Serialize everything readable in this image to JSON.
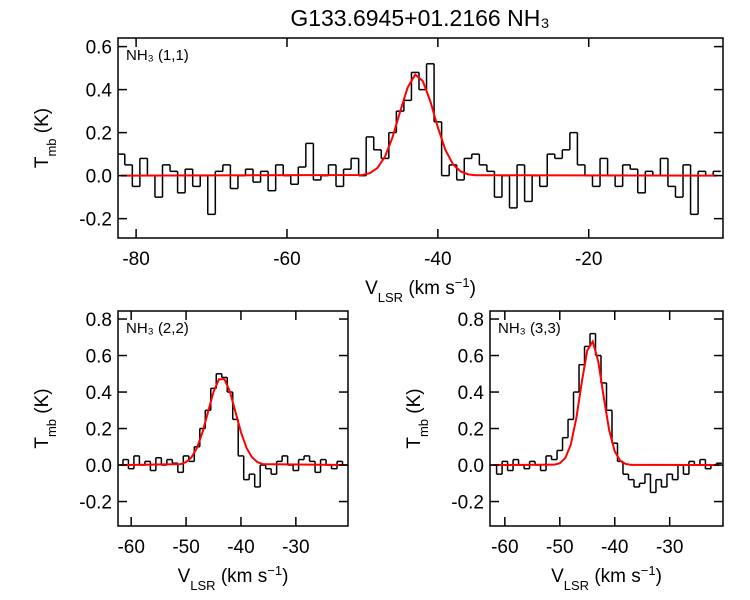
{
  "chart_data": [
    {
      "type": "line",
      "title": "G133.6945+01.2166 NH₃",
      "annotation": "NH₃ (1,1)",
      "ylabel": {
        "main": "T",
        "sub": "mb",
        "unit": " (K)"
      },
      "xlabel": {
        "main": "V",
        "sub": "LSR",
        "unit": " (km s",
        "sup": "−1",
        "close": ")"
      },
      "xlim": [
        -82.4,
        -2.2
      ],
      "ylim": [
        -0.29,
        0.64
      ],
      "xticks": [
        -80,
        -60,
        -40,
        -20
      ],
      "yticks": [
        -0.2,
        {
          "value": 0,
          "label": "0.0"
        },
        0.2,
        0.4,
        0.6
      ],
      "series": [
        {
          "color": "#000000",
          "step": true,
          "x": [
            -82,
            -81,
            -80,
            -79,
            -78,
            -77,
            -76,
            -75,
            -74,
            -73,
            -72,
            -71,
            -70,
            -69,
            -68,
            -67,
            -66,
            -65,
            -64,
            -63,
            -62,
            -61,
            -60,
            -59,
            -58,
            -57,
            -56,
            -55,
            -54,
            -53,
            -52,
            -51,
            -50,
            -49,
            -48,
            -47,
            -46,
            -45,
            -44,
            -43,
            -42,
            -41,
            -40,
            -39,
            -38,
            -37,
            -36,
            -35,
            -34,
            -33,
            -32,
            -31,
            -30,
            -29,
            -28,
            -27,
            -26,
            -25,
            -24,
            -23,
            -22,
            -21,
            -20,
            -19,
            -18,
            -17,
            -16,
            -15,
            -14,
            -13,
            -12,
            -11,
            -10,
            -9,
            -8,
            -7,
            -6,
            -5,
            -4,
            -3
          ],
          "values": [
            0.1,
            0.05,
            -0.05,
            0.08,
            0.0,
            -0.1,
            0.05,
            0.02,
            -0.08,
            0.03,
            -0.05,
            0.0,
            -0.18,
            0.02,
            0.05,
            -0.06,
            0.0,
            0.03,
            -0.03,
            0.02,
            -0.07,
            0.05,
            0.0,
            -0.04,
            0.04,
            0.15,
            -0.02,
            0.0,
            0.05,
            -0.05,
            0.03,
            0.08,
            0.0,
            0.18,
            0.12,
            0.08,
            0.2,
            0.3,
            0.35,
            0.48,
            0.4,
            0.52,
            0.25,
            0.0,
            0.05,
            -0.02,
            0.08,
            0.1,
            0.05,
            0.02,
            -0.1,
            0.0,
            -0.15,
            0.05,
            -0.12,
            0.0,
            -0.05,
            0.1,
            0.08,
            0.12,
            0.2,
            0.05,
            0.0,
            -0.05,
            0.08,
            0.0,
            -0.05,
            0.05,
            0.03,
            -0.08,
            0.02,
            0.0,
            0.08,
            -0.05,
            -0.1,
            0.05,
            -0.18,
            0.02,
            0.0,
            0.02
          ]
        },
        {
          "color": "#ff0000",
          "step": false,
          "x": [
            -82,
            -50,
            -49,
            -48,
            -47,
            -46,
            -45,
            -44,
            -43,
            -42,
            -41,
            -40,
            -39,
            -38,
            -37,
            -36,
            -35,
            -3
          ],
          "values": [
            0,
            0.003,
            0.012,
            0.036,
            0.089,
            0.179,
            0.298,
            0.41,
            0.47,
            0.44,
            0.346,
            0.224,
            0.12,
            0.053,
            0.02,
            0.006,
            0.002,
            0
          ]
        }
      ]
    },
    {
      "type": "line",
      "annotation": "NH₃ (2,2)",
      "ylabel": {
        "main": "T",
        "sub": "mb",
        "unit": " (K)"
      },
      "xlabel": {
        "main": "V",
        "sub": "LSR",
        "unit": " (km s",
        "sup": "−1",
        "close": ")"
      },
      "xlim": [
        -62.4,
        -20.5
      ],
      "ylim": [
        -0.334,
        0.844
      ],
      "xticks": [
        -60,
        -50,
        -40,
        -30
      ],
      "yticks": [
        -0.2,
        {
          "value": 0,
          "label": "0.0"
        },
        0.2,
        0.4,
        0.6,
        0.8
      ],
      "series": [
        {
          "color": "#000000",
          "step": true,
          "x": [
            -62,
            -61,
            -60,
            -59,
            -58,
            -57,
            -56,
            -55,
            -54,
            -53,
            -52,
            -51,
            -50,
            -49,
            -48,
            -47,
            -46,
            -45,
            -44,
            -43,
            -42,
            -41,
            -40,
            -39,
            -38,
            -37,
            -36,
            -35,
            -34,
            -33,
            -32,
            -31,
            -30,
            -29,
            -28,
            -27,
            -26,
            -25,
            -24,
            -23,
            -22,
            -21
          ],
          "values": [
            0.0,
            0.03,
            -0.02,
            0.05,
            0.0,
            0.02,
            -0.03,
            0.04,
            0.0,
            0.03,
            0.01,
            -0.04,
            0.05,
            0.02,
            0.1,
            0.2,
            0.3,
            0.42,
            0.5,
            0.48,
            0.4,
            0.25,
            0.05,
            -0.08,
            -0.05,
            -0.12,
            0.0,
            -0.02,
            -0.05,
            0.02,
            0.05,
            0.0,
            -0.03,
            0.03,
            0.05,
            0.02,
            -0.04,
            0.03,
            0.0,
            -0.02,
            0.02,
            0.0
          ]
        },
        {
          "color": "#ff0000",
          "step": false,
          "x": [
            -62,
            -51,
            -50,
            -49,
            -48,
            -47,
            -46,
            -45,
            -44,
            -43,
            -42,
            -41,
            -40,
            -39,
            -38,
            -37,
            -36,
            -21
          ],
          "values": [
            0,
            0.005,
            0.016,
            0.043,
            0.095,
            0.18,
            0.291,
            0.401,
            0.47,
            0.47,
            0.401,
            0.291,
            0.18,
            0.095,
            0.043,
            0.016,
            0.005,
            0
          ]
        }
      ]
    },
    {
      "type": "line",
      "annotation": "NH₃ (3,3)",
      "ylabel": {
        "main": "T",
        "sub": "mb",
        "unit": " (K)"
      },
      "xlabel": {
        "main": "V",
        "sub": "LSR",
        "unit": " (km s",
        "sup": "−1",
        "close": ")"
      },
      "xlim": [
        -62.7,
        -20.3
      ],
      "ylim": [
        -0.334,
        0.844
      ],
      "xticks": [
        -60,
        -50,
        -40,
        -30
      ],
      "yticks": [
        -0.2,
        {
          "value": 0,
          "label": "0.0"
        },
        0.2,
        0.4,
        0.6,
        0.8
      ],
      "series": [
        {
          "color": "#000000",
          "step": true,
          "x": [
            -62,
            -61,
            -60,
            -59,
            -58,
            -57,
            -56,
            -55,
            -54,
            -53,
            -52,
            -51,
            -50,
            -49,
            -48,
            -47,
            -46,
            -45,
            -44,
            -43,
            -42,
            -41,
            -40,
            -39,
            -38,
            -37,
            -36,
            -35,
            -34,
            -33,
            -32,
            -31,
            -30,
            -29,
            -28,
            -27,
            -26,
            -25,
            -24,
            -23,
            -22,
            -21
          ],
          "values": [
            0.0,
            -0.05,
            0.02,
            -0.03,
            0.03,
            0.0,
            -0.02,
            0.02,
            0.0,
            -0.03,
            0.05,
            0.03,
            0.08,
            0.15,
            0.25,
            0.4,
            0.55,
            0.65,
            0.72,
            0.6,
            0.45,
            0.3,
            0.12,
            0.02,
            -0.05,
            -0.08,
            -0.12,
            -0.1,
            -0.05,
            -0.15,
            -0.08,
            -0.12,
            -0.05,
            -0.08,
            0.0,
            -0.05,
            0.02,
            0.0,
            0.03,
            -0.02,
            0.0,
            0.01
          ]
        },
        {
          "color": "#ff0000",
          "step": false,
          "x": [
            -62,
            -51,
            -50,
            -49,
            -48,
            -47,
            -46,
            -45,
            -44,
            -43,
            -42,
            -41,
            -40,
            -39,
            -38,
            -37,
            -21
          ],
          "values": [
            0,
            0.002,
            0.01,
            0.038,
            0.112,
            0.255,
            0.454,
            0.628,
            0.677,
            0.568,
            0.371,
            0.189,
            0.075,
            0.023,
            0.006,
            0.001,
            0
          ]
        }
      ]
    }
  ]
}
